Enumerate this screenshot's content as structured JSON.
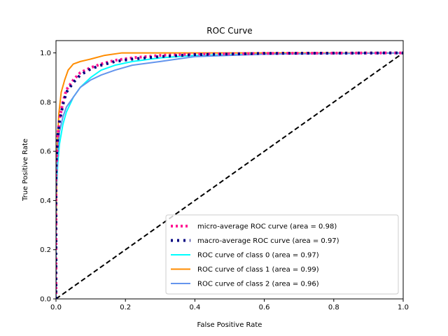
{
  "chart_data": {
    "type": "line",
    "title": "ROC Curve",
    "xlabel": "False Positive Rate",
    "ylabel": "True Positive Rate",
    "xlim": [
      0.0,
      1.0
    ],
    "ylim": [
      0.0,
      1.05
    ],
    "x_ticks": [
      "0.0",
      "0.2",
      "0.4",
      "0.6",
      "0.8",
      "1.0"
    ],
    "y_ticks": [
      "0.0",
      "0.2",
      "0.4",
      "0.6",
      "0.8",
      "1.0"
    ],
    "grid": false,
    "legend_position": "lower-right",
    "series": [
      {
        "name": "micro-average ROC curve (area = 0.98)",
        "color": "#ff1493",
        "style": "dotted",
        "x": [
          0.0,
          0.0,
          0.005,
          0.01,
          0.02,
          0.03,
          0.05,
          0.07,
          0.1,
          0.13,
          0.17,
          0.22,
          0.3,
          0.4,
          0.6,
          1.0
        ],
        "y": [
          0.0,
          0.5,
          0.66,
          0.73,
          0.8,
          0.85,
          0.89,
          0.92,
          0.94,
          0.955,
          0.97,
          0.98,
          0.99,
          0.995,
          0.998,
          1.0
        ]
      },
      {
        "name": "macro-average ROC curve (area = 0.97)",
        "color": "#000080",
        "style": "dotted",
        "x": [
          0.0,
          0.0,
          0.005,
          0.01,
          0.02,
          0.03,
          0.05,
          0.07,
          0.1,
          0.13,
          0.17,
          0.22,
          0.3,
          0.4,
          0.6,
          1.0
        ],
        "y": [
          0.0,
          0.55,
          0.66,
          0.72,
          0.79,
          0.84,
          0.88,
          0.91,
          0.935,
          0.95,
          0.965,
          0.975,
          0.985,
          0.993,
          0.998,
          1.0
        ]
      },
      {
        "name": "ROC curve of class 0 (area = 0.97)",
        "color": "#00ffff",
        "style": "solid",
        "x": [
          0.0,
          0.0,
          0.005,
          0.01,
          0.02,
          0.03,
          0.05,
          0.07,
          0.1,
          0.13,
          0.17,
          0.22,
          0.3,
          0.4,
          0.6,
          1.0
        ],
        "y": [
          0.0,
          0.4,
          0.55,
          0.63,
          0.71,
          0.76,
          0.82,
          0.86,
          0.9,
          0.93,
          0.95,
          0.965,
          0.98,
          0.99,
          0.995,
          1.0
        ]
      },
      {
        "name": "ROC curve of class 1 (area = 0.99)",
        "color": "#ff8c00",
        "style": "solid",
        "x": [
          0.0,
          0.0,
          0.003,
          0.008,
          0.015,
          0.025,
          0.035,
          0.05,
          0.07,
          0.1,
          0.14,
          0.19,
          0.27,
          0.4,
          0.6,
          1.0
        ],
        "y": [
          0.0,
          0.25,
          0.6,
          0.75,
          0.84,
          0.89,
          0.93,
          0.955,
          0.965,
          0.975,
          0.99,
          1.0,
          1.0,
          1.0,
          1.0,
          1.0
        ]
      },
      {
        "name": "ROC curve of class 2 (area = 0.96)",
        "color": "#6495ed",
        "style": "solid",
        "x": [
          0.0,
          0.0,
          0.005,
          0.01,
          0.02,
          0.03,
          0.05,
          0.07,
          0.1,
          0.13,
          0.17,
          0.22,
          0.3,
          0.4,
          0.6,
          1.0
        ],
        "y": [
          0.0,
          0.45,
          0.6,
          0.68,
          0.74,
          0.78,
          0.82,
          0.86,
          0.89,
          0.91,
          0.93,
          0.95,
          0.965,
          0.985,
          0.995,
          1.0
        ]
      }
    ],
    "reference_line": {
      "color": "#000000",
      "style": "dashed",
      "x": [
        0.0,
        1.0
      ],
      "y": [
        0.0,
        1.0
      ]
    }
  }
}
